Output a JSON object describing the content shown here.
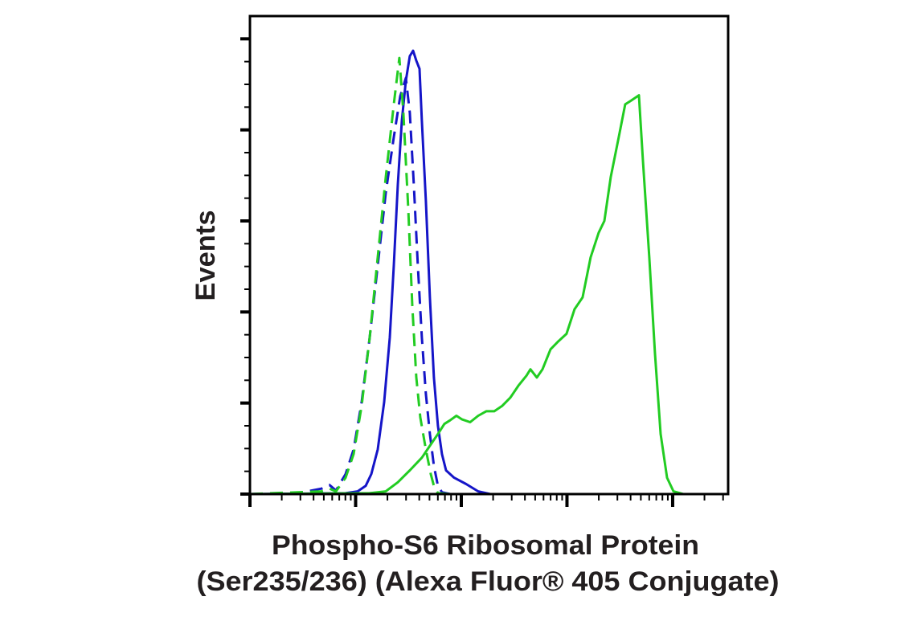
{
  "chart_data": {
    "type": "line",
    "title": "",
    "xlabel_lines": [
      "Phospho-S6 Ribosomal Protein",
      "(Ser235/236) (Alexa Fluor® 405 Conjugate)"
    ],
    "ylabel": "Events",
    "x_scale": "log (values are log10 decades from axis origin)",
    "xlim": [
      0,
      4.525
    ],
    "x_major_decades": [
      0,
      1,
      2,
      3,
      4
    ],
    "ylim": [
      0,
      5.25
    ],
    "y_major_ticks": [
      0,
      1,
      2,
      3,
      4,
      5
    ],
    "y_minor_per_major": 3,
    "grid": false,
    "legend": "none",
    "series": [
      {
        "name": "blue-solid",
        "color": "#1515c8",
        "style": "solid",
        "x": [
          0,
          0.905,
          1.019,
          1.095,
          1.148,
          1.209,
          1.27,
          1.323,
          1.361,
          1.399,
          1.437,
          1.475,
          1.513,
          1.544,
          1.574,
          1.605,
          1.627,
          1.665,
          1.703,
          1.741,
          1.779,
          1.817,
          1.856,
          1.932,
          2.046,
          2.16,
          2.274,
          4.525
        ],
        "y": [
          0,
          0.01,
          0.03,
          0.09,
          0.22,
          0.49,
          1.01,
          1.72,
          2.51,
          3.4,
          4.1,
          4.54,
          4.81,
          4.87,
          4.76,
          4.67,
          4.1,
          3.22,
          2.16,
          1.28,
          0.75,
          0.44,
          0.26,
          0.18,
          0.11,
          0.03,
          0,
          0
        ]
      },
      {
        "name": "blue-dashed",
        "color": "#1515c8",
        "style": "dashed",
        "x": [
          0,
          0.449,
          0.677,
          0.753,
          0.814,
          0.905,
          0.981,
          1.057,
          1.133,
          1.209,
          1.285,
          1.361,
          1.422,
          1.475,
          1.513,
          1.551,
          1.589,
          1.627,
          1.665,
          1.703,
          1.741,
          1.779,
          1.817,
          1.894
        ],
        "y": [
          0,
          0.01,
          0.06,
          0.1,
          0.04,
          0.22,
          0.49,
          1.01,
          1.72,
          2.51,
          3.31,
          3.92,
          4.37,
          4.57,
          4.19,
          3.4,
          2.51,
          1.72,
          1.1,
          0.66,
          0.31,
          0.09,
          0.02,
          0
        ]
      },
      {
        "name": "green-dashed",
        "color": "#22cc22",
        "style": "dashed",
        "x": [
          0,
          0.677,
          0.753,
          0.814,
          0.905,
          0.981,
          1.057,
          1.133,
          1.209,
          1.285,
          1.361,
          1.414,
          1.452,
          1.498,
          1.536,
          1.574,
          1.612,
          1.665,
          1.711,
          1.741,
          1.779,
          1.894
        ],
        "y": [
          0,
          0.03,
          0.06,
          0.03,
          0.18,
          0.44,
          0.97,
          1.72,
          2.6,
          3.48,
          4.28,
          4.79,
          4.19,
          3.13,
          2.07,
          1.28,
          0.84,
          0.49,
          0.22,
          0.09,
          0.01,
          0
        ]
      },
      {
        "name": "green-solid",
        "color": "#22cc22",
        "style": "solid",
        "x": [
          0,
          1.133,
          1.285,
          1.399,
          1.513,
          1.627,
          1.703,
          1.779,
          1.84,
          1.894,
          1.954,
          2.008,
          2.084,
          2.16,
          2.236,
          2.312,
          2.388,
          2.464,
          2.54,
          2.616,
          2.654,
          2.715,
          2.768,
          2.844,
          2.92,
          2.996,
          3.072,
          3.148,
          3.224,
          3.3,
          3.354,
          3.414,
          3.49,
          3.551,
          3.605,
          3.643,
          3.681,
          3.719,
          3.779,
          3.833,
          3.886,
          3.947,
          4.008,
          4.099,
          4.525
        ],
        "y": [
          0,
          0.01,
          0.03,
          0.13,
          0.26,
          0.4,
          0.53,
          0.66,
          0.77,
          0.81,
          0.86,
          0.82,
          0.79,
          0.86,
          0.91,
          0.91,
          0.97,
          1.06,
          1.19,
          1.3,
          1.37,
          1.28,
          1.37,
          1.59,
          1.68,
          1.76,
          2.03,
          2.16,
          2.6,
          2.87,
          3.0,
          3.48,
          3.92,
          4.28,
          4.32,
          4.35,
          4.38,
          3.66,
          2.6,
          1.54,
          0.66,
          0.18,
          0.03,
          0,
          0
        ]
      }
    ]
  }
}
